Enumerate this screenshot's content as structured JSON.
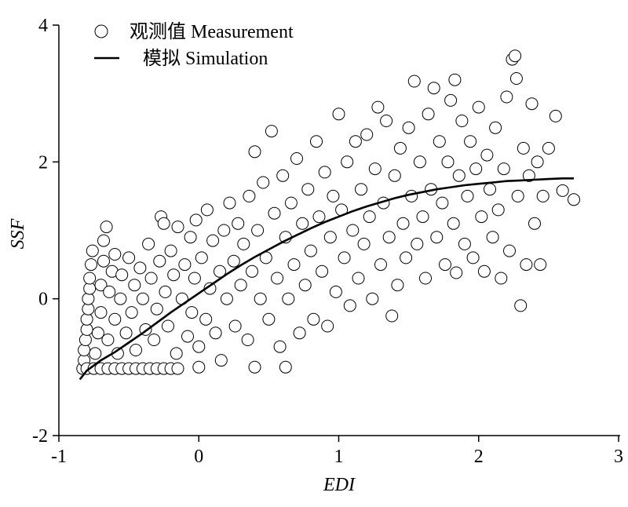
{
  "chart_data": {
    "type": "scatter",
    "xlabel": "EDI",
    "ylabel": "SSF",
    "xlim": [
      -1,
      3
    ],
    "ylim": [
      -2,
      4
    ],
    "xticks": [
      "-1",
      "0",
      "1",
      "2",
      "3"
    ],
    "yticks": [
      "-2",
      "0",
      "2",
      "4"
    ],
    "grid": false,
    "legend_position": "top-left",
    "colors": {
      "marker_fill": "#ffffff",
      "marker_edge": "#000000",
      "line": "#000000"
    },
    "series": [
      {
        "name": "观测值 Measurement",
        "kind": "scatter",
        "marker": "open-circle",
        "points": [
          [
            -0.83,
            -1.02
          ],
          [
            -0.82,
            -0.9
          ],
          [
            -0.82,
            -0.75
          ],
          [
            -0.81,
            -0.6
          ],
          [
            -0.8,
            -0.45
          ],
          [
            -0.8,
            -0.3
          ],
          [
            -0.79,
            -0.15
          ],
          [
            -0.79,
            0.0
          ],
          [
            -0.78,
            0.15
          ],
          [
            -0.78,
            0.3
          ],
          [
            -0.77,
            0.5
          ],
          [
            -0.76,
            0.7
          ],
          [
            -0.8,
            -1.02
          ],
          [
            -0.75,
            -1.02
          ],
          [
            -0.7,
            -1.02
          ],
          [
            -0.65,
            -1.02
          ],
          [
            -0.6,
            -1.02
          ],
          [
            -0.55,
            -1.02
          ],
          [
            -0.5,
            -1.02
          ],
          [
            -0.45,
            -1.02
          ],
          [
            -0.4,
            -1.02
          ],
          [
            -0.35,
            -1.02
          ],
          [
            -0.3,
            -1.02
          ],
          [
            -0.25,
            -1.02
          ],
          [
            -0.2,
            -1.02
          ],
          [
            -0.15,
            -1.02
          ],
          [
            -0.74,
            -0.8
          ],
          [
            -0.72,
            -0.5
          ],
          [
            -0.7,
            -0.2
          ],
          [
            -0.7,
            0.2
          ],
          [
            -0.68,
            0.55
          ],
          [
            -0.68,
            0.85
          ],
          [
            -0.66,
            1.05
          ],
          [
            -0.65,
            -0.6
          ],
          [
            -0.64,
            0.1
          ],
          [
            -0.62,
            0.4
          ],
          [
            -0.6,
            -0.3
          ],
          [
            -0.6,
            0.65
          ],
          [
            -0.58,
            -0.8
          ],
          [
            -0.56,
            0.0
          ],
          [
            -0.55,
            0.35
          ],
          [
            -0.52,
            -0.5
          ],
          [
            -0.5,
            0.6
          ],
          [
            -0.48,
            -0.2
          ],
          [
            -0.46,
            0.2
          ],
          [
            -0.45,
            -0.75
          ],
          [
            -0.42,
            0.45
          ],
          [
            -0.4,
            0.0
          ],
          [
            -0.38,
            -0.45
          ],
          [
            -0.36,
            0.8
          ],
          [
            -0.34,
            0.3
          ],
          [
            -0.32,
            -0.6
          ],
          [
            -0.3,
            -0.15
          ],
          [
            -0.28,
            0.55
          ],
          [
            -0.27,
            1.2
          ],
          [
            -0.25,
            1.1
          ],
          [
            -0.24,
            0.1
          ],
          [
            -0.22,
            -0.4
          ],
          [
            -0.2,
            0.7
          ],
          [
            -0.18,
            0.35
          ],
          [
            -0.16,
            -0.8
          ],
          [
            -0.15,
            1.05
          ],
          [
            -0.12,
            0.0
          ],
          [
            -0.1,
            0.5
          ],
          [
            -0.08,
            -0.55
          ],
          [
            -0.06,
            0.9
          ],
          [
            -0.05,
            -0.2
          ],
          [
            -0.03,
            0.3
          ],
          [
            -0.02,
            1.15
          ],
          [
            0.0,
            -0.7
          ],
          [
            0.0,
            -1.0
          ],
          [
            0.02,
            0.6
          ],
          [
            0.05,
            -0.3
          ],
          [
            0.06,
            1.3
          ],
          [
            0.08,
            0.15
          ],
          [
            0.1,
            0.85
          ],
          [
            0.12,
            -0.5
          ],
          [
            0.15,
            0.4
          ],
          [
            0.16,
            -0.9
          ],
          [
            0.18,
            1.0
          ],
          [
            0.2,
            0.0
          ],
          [
            0.22,
            1.4
          ],
          [
            0.25,
            0.55
          ],
          [
            0.26,
            -0.4
          ],
          [
            0.28,
            1.1
          ],
          [
            0.3,
            0.2
          ],
          [
            0.32,
            0.8
          ],
          [
            0.35,
            -0.6
          ],
          [
            0.36,
            1.5
          ],
          [
            0.38,
            0.4
          ],
          [
            0.4,
            -1.0
          ],
          [
            0.4,
            2.15
          ],
          [
            0.42,
            1.0
          ],
          [
            0.44,
            0.0
          ],
          [
            0.46,
            1.7
          ],
          [
            0.48,
            0.6
          ],
          [
            0.5,
            -0.3
          ],
          [
            0.52,
            2.45
          ],
          [
            0.54,
            1.25
          ],
          [
            0.56,
            0.3
          ],
          [
            0.58,
            -0.7
          ],
          [
            0.6,
            1.8
          ],
          [
            0.62,
            -1.0
          ],
          [
            0.62,
            0.9
          ],
          [
            0.64,
            0.0
          ],
          [
            0.66,
            1.4
          ],
          [
            0.68,
            0.5
          ],
          [
            0.7,
            2.05
          ],
          [
            0.72,
            -0.5
          ],
          [
            0.74,
            1.1
          ],
          [
            0.76,
            0.2
          ],
          [
            0.78,
            1.6
          ],
          [
            0.8,
            0.7
          ],
          [
            0.82,
            -0.3
          ],
          [
            0.84,
            2.3
          ],
          [
            0.86,
            1.2
          ],
          [
            0.88,
            0.4
          ],
          [
            0.9,
            1.85
          ],
          [
            0.92,
            -0.4
          ],
          [
            0.94,
            0.9
          ],
          [
            0.96,
            1.5
          ],
          [
            0.98,
            0.1
          ],
          [
            1.0,
            2.7
          ],
          [
            1.02,
            1.3
          ],
          [
            1.04,
            0.6
          ],
          [
            1.06,
            2.0
          ],
          [
            1.08,
            -0.1
          ],
          [
            1.1,
            1.0
          ],
          [
            1.12,
            2.3
          ],
          [
            1.14,
            0.3
          ],
          [
            1.16,
            1.6
          ],
          [
            1.18,
            0.8
          ],
          [
            1.2,
            2.4
          ],
          [
            1.22,
            1.2
          ],
          [
            1.24,
            0.0
          ],
          [
            1.26,
            1.9
          ],
          [
            1.28,
            2.8
          ],
          [
            1.3,
            0.5
          ],
          [
            1.32,
            1.4
          ],
          [
            1.34,
            2.6
          ],
          [
            1.36,
            0.9
          ],
          [
            1.38,
            -0.25
          ],
          [
            1.4,
            1.8
          ],
          [
            1.42,
            0.2
          ],
          [
            1.44,
            2.2
          ],
          [
            1.46,
            1.1
          ],
          [
            1.48,
            0.6
          ],
          [
            1.5,
            2.5
          ],
          [
            1.52,
            1.5
          ],
          [
            1.54,
            3.18
          ],
          [
            1.56,
            0.8
          ],
          [
            1.58,
            2.0
          ],
          [
            1.6,
            1.2
          ],
          [
            1.62,
            0.3
          ],
          [
            1.64,
            2.7
          ],
          [
            1.66,
            1.6
          ],
          [
            1.68,
            3.08
          ],
          [
            1.7,
            0.9
          ],
          [
            1.72,
            2.3
          ],
          [
            1.74,
            1.4
          ],
          [
            1.76,
            0.5
          ],
          [
            1.78,
            2.0
          ],
          [
            1.8,
            2.9
          ],
          [
            1.82,
            1.1
          ],
          [
            1.83,
            3.2
          ],
          [
            1.84,
            0.38
          ],
          [
            1.86,
            1.8
          ],
          [
            1.88,
            2.6
          ],
          [
            1.9,
            0.8
          ],
          [
            1.92,
            1.5
          ],
          [
            1.94,
            2.3
          ],
          [
            1.96,
            0.6
          ],
          [
            1.98,
            1.9
          ],
          [
            2.0,
            2.8
          ],
          [
            2.02,
            1.2
          ],
          [
            2.04,
            0.4
          ],
          [
            2.06,
            2.1
          ],
          [
            2.08,
            1.6
          ],
          [
            2.1,
            0.9
          ],
          [
            2.12,
            2.5
          ],
          [
            2.14,
            1.3
          ],
          [
            2.16,
            0.3
          ],
          [
            2.18,
            1.9
          ],
          [
            2.2,
            2.95
          ],
          [
            2.22,
            0.7
          ],
          [
            2.24,
            3.5
          ],
          [
            2.26,
            3.55
          ],
          [
            2.27,
            3.22
          ],
          [
            2.28,
            1.5
          ],
          [
            2.3,
            -0.1
          ],
          [
            2.32,
            2.2
          ],
          [
            2.34,
            0.5
          ],
          [
            2.36,
            1.8
          ],
          [
            2.38,
            2.85
          ],
          [
            2.4,
            1.1
          ],
          [
            2.42,
            2.0
          ],
          [
            2.44,
            0.5
          ],
          [
            2.46,
            1.5
          ],
          [
            2.5,
            2.2
          ],
          [
            2.55,
            2.67
          ],
          [
            2.6,
            1.58
          ],
          [
            2.68,
            1.45
          ]
        ]
      },
      {
        "name": "模拟 Simulation",
        "kind": "line",
        "points": [
          [
            -0.85,
            -1.18
          ],
          [
            -0.8,
            -1.05
          ],
          [
            -0.7,
            -0.9
          ],
          [
            -0.6,
            -0.78
          ],
          [
            -0.5,
            -0.64
          ],
          [
            -0.4,
            -0.5
          ],
          [
            -0.3,
            -0.35
          ],
          [
            -0.2,
            -0.2
          ],
          [
            -0.1,
            -0.06
          ],
          [
            0.0,
            0.08
          ],
          [
            0.1,
            0.22
          ],
          [
            0.2,
            0.36
          ],
          [
            0.3,
            0.49
          ],
          [
            0.4,
            0.61
          ],
          [
            0.5,
            0.72
          ],
          [
            0.6,
            0.83
          ],
          [
            0.7,
            0.93
          ],
          [
            0.8,
            1.03
          ],
          [
            0.9,
            1.12
          ],
          [
            1.0,
            1.2
          ],
          [
            1.1,
            1.28
          ],
          [
            1.2,
            1.35
          ],
          [
            1.3,
            1.41
          ],
          [
            1.4,
            1.47
          ],
          [
            1.5,
            1.52
          ],
          [
            1.6,
            1.56
          ],
          [
            1.7,
            1.6
          ],
          [
            1.8,
            1.63
          ],
          [
            1.9,
            1.66
          ],
          [
            2.0,
            1.68
          ],
          [
            2.1,
            1.7
          ],
          [
            2.2,
            1.72
          ],
          [
            2.3,
            1.73
          ],
          [
            2.4,
            1.74
          ],
          [
            2.5,
            1.75
          ],
          [
            2.6,
            1.76
          ],
          [
            2.68,
            1.76
          ]
        ]
      }
    ]
  }
}
